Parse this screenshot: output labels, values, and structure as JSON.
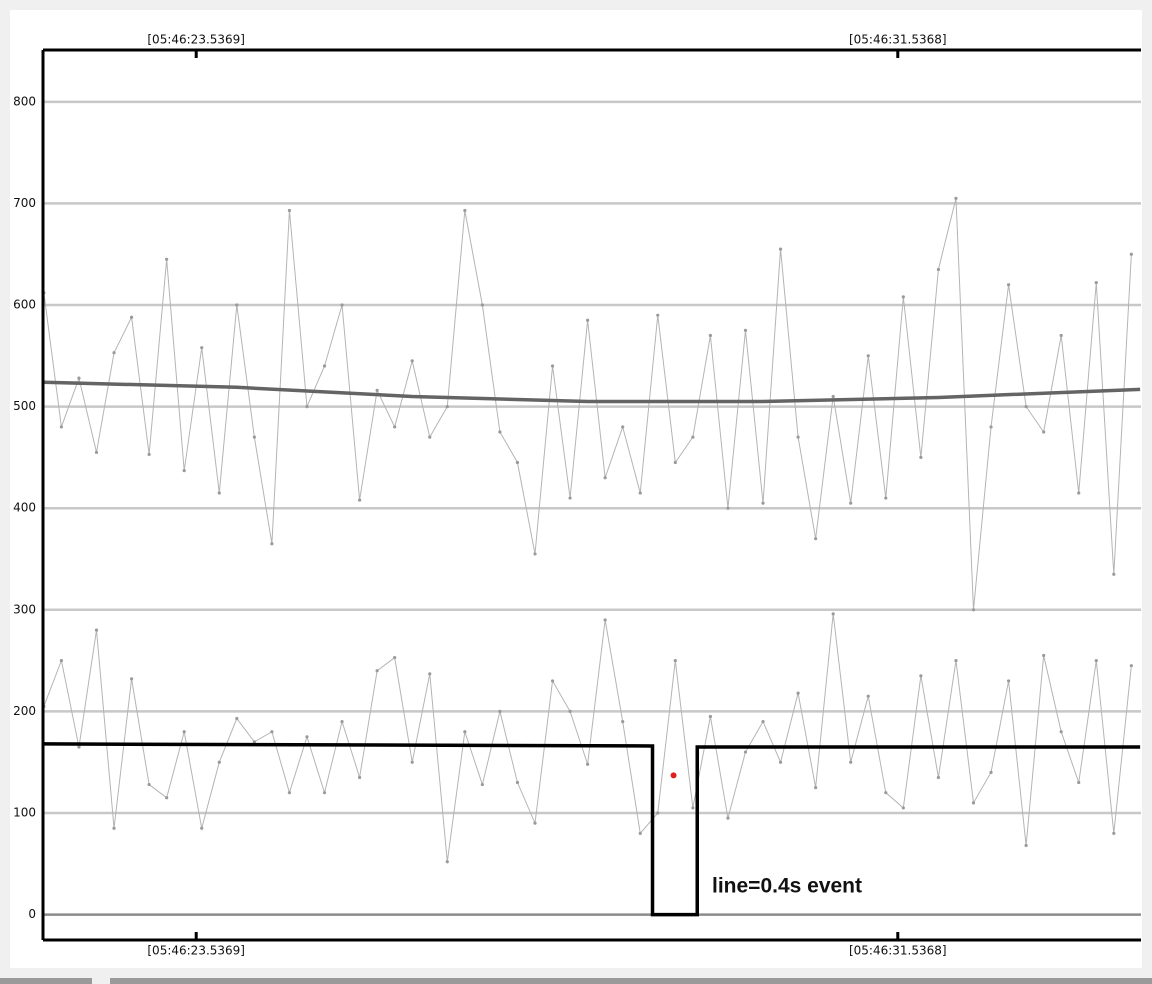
{
  "chart_data": {
    "type": "line",
    "xlim": [
      21.79,
      34.31
    ],
    "ylim": [
      -25,
      851
    ],
    "xticks": [
      {
        "value": 23.5369,
        "label": "[05:46:23.5369]"
      },
      {
        "value": 31.5368,
        "label": "[05:46:31.5368]"
      }
    ],
    "yticks": [
      0,
      100,
      200,
      300,
      400,
      500,
      600,
      700,
      800
    ],
    "grid": true,
    "series": [
      {
        "color": "#b4b4b4",
        "markers": true,
        "x": [
          21.8,
          22.0,
          22.2,
          22.4,
          22.6,
          22.8,
          23.0,
          23.2,
          23.4,
          23.6,
          23.8,
          24.0,
          24.2,
          24.4,
          24.6,
          24.8,
          25.0,
          25.2,
          25.4,
          25.6,
          25.8,
          26.0,
          26.2,
          26.4,
          26.6,
          26.8,
          27.0,
          27.2,
          27.4,
          27.6,
          27.8,
          28.0,
          28.2,
          28.4,
          28.6,
          28.8,
          29.0,
          29.2,
          29.4,
          29.6,
          29.8,
          30.0,
          30.2,
          30.4,
          30.6,
          30.8,
          31.0,
          31.2,
          31.4,
          31.6,
          31.8,
          32.0,
          32.2,
          32.4,
          32.6,
          32.8,
          33.0,
          33.2,
          33.4,
          33.6,
          33.8,
          34.0,
          34.2
        ],
        "values": [
          612,
          480,
          528,
          455,
          553,
          588,
          453,
          645,
          437,
          558,
          415,
          600,
          470,
          365,
          693,
          500,
          540,
          600,
          408,
          516,
          480,
          545,
          470,
          500,
          693,
          600,
          475,
          445,
          355,
          540,
          410,
          585,
          430,
          480,
          415,
          590,
          445,
          470,
          570,
          400,
          575,
          405,
          655,
          470,
          370,
          510,
          405,
          550,
          410,
          608,
          450,
          635,
          705,
          300,
          480,
          620,
          500,
          475,
          570,
          415,
          622,
          335,
          650
        ]
      },
      {
        "color": "#b4b4b4",
        "markers": true,
        "x": [
          21.8,
          22.0,
          22.2,
          22.4,
          22.6,
          22.8,
          23.0,
          23.2,
          23.4,
          23.6,
          23.8,
          24.0,
          24.2,
          24.4,
          24.6,
          24.8,
          25.0,
          25.2,
          25.4,
          25.6,
          25.8,
          26.0,
          26.2,
          26.4,
          26.6,
          26.8,
          27.0,
          27.2,
          27.4,
          27.6,
          27.8,
          28.0,
          28.2,
          28.4,
          28.6,
          28.8,
          29.0,
          29.2,
          29.4,
          29.6,
          29.8,
          30.0,
          30.2,
          30.4,
          30.6,
          30.8,
          31.0,
          31.2,
          31.4,
          31.6,
          31.8,
          32.0,
          32.2,
          32.4,
          32.6,
          32.8,
          33.0,
          33.2,
          33.4,
          33.6,
          33.8,
          34.0,
          34.2
        ],
        "values": [
          205,
          250,
          165,
          280,
          85,
          232,
          128,
          115,
          180,
          85,
          150,
          193,
          170,
          180,
          120,
          175,
          120,
          190,
          135,
          240,
          253,
          150,
          237,
          52,
          180,
          128,
          200,
          130,
          90,
          230,
          200,
          148,
          290,
          190,
          80,
          100,
          250,
          105,
          195,
          95,
          160,
          190,
          150,
          218,
          125,
          296,
          150,
          215,
          120,
          105,
          235,
          135,
          250,
          110,
          140,
          230,
          68,
          255,
          180,
          130,
          250,
          80,
          245
        ]
      },
      {
        "color": "#646464",
        "markers": false,
        "x": [
          21.8,
          24,
          26,
          28,
          30,
          32,
          34.3
        ],
        "values": [
          524,
          519,
          510,
          505,
          505,
          509,
          517
        ]
      },
      {
        "color": "#000000",
        "markers": false,
        "x": [
          21.8,
          28.74,
          28.74,
          29.25,
          29.25,
          34.3
        ],
        "values": [
          168,
          166,
          0,
          0,
          165,
          165
        ]
      }
    ],
    "point": {
      "x": 28.98,
      "value": 137,
      "color": "#e02020"
    },
    "annotation": "line=0.4s event"
  }
}
